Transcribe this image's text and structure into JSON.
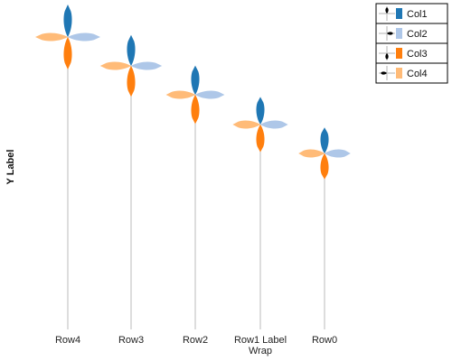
{
  "chart_data": {
    "type": "glyph",
    "ylabel": "Y Label",
    "categories": [
      "Row4",
      "Row3",
      "Row2",
      "Row1 Label Wrap",
      "Row0"
    ],
    "series": [
      {
        "name": "Col1",
        "color": "#1f77b4",
        "direction": "up",
        "values": [
          1.0,
          0.95,
          0.9,
          0.85,
          0.8
        ]
      },
      {
        "name": "Col2",
        "color": "#aec7e8",
        "direction": "right",
        "values": [
          1.0,
          0.95,
          0.9,
          0.85,
          0.8
        ]
      },
      {
        "name": "Col3",
        "color": "#ff7f0e",
        "direction": "down",
        "values": [
          1.0,
          0.95,
          0.9,
          0.85,
          0.8
        ]
      },
      {
        "name": "Col4",
        "color": "#ffbb78",
        "direction": "left",
        "values": [
          1.0,
          0.95,
          0.9,
          0.85,
          0.8
        ]
      }
    ],
    "grid": false,
    "legend": "top-right"
  }
}
